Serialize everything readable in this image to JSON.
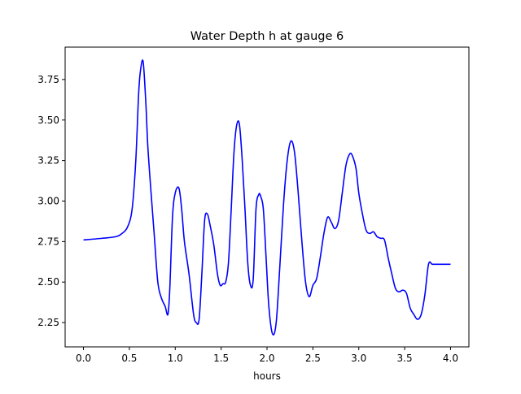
{
  "chart_data": {
    "type": "line",
    "title": "Water Depth h at gauge 6",
    "xlabel": "hours",
    "ylabel": "",
    "xlim": [
      -0.2,
      4.2
    ],
    "ylim": [
      2.1,
      3.95
    ],
    "x_ticks": [
      0.0,
      0.5,
      1.0,
      1.5,
      2.0,
      2.5,
      3.0,
      3.5,
      4.0
    ],
    "x_tick_labels": [
      "0.0",
      "0.5",
      "1.0",
      "1.5",
      "2.0",
      "2.5",
      "3.0",
      "3.5",
      "4.0"
    ],
    "y_ticks": [
      2.25,
      2.5,
      2.75,
      3.0,
      3.25,
      3.5,
      3.75
    ],
    "y_tick_labels": [
      "2.25",
      "2.50",
      "2.75",
      "3.00",
      "3.25",
      "3.50",
      "3.75"
    ],
    "grid": false,
    "legend": "none",
    "series": [
      {
        "color": "#0000ff",
        "x": [
          0.0,
          0.2,
          0.35,
          0.42,
          0.48,
          0.53,
          0.57,
          0.6,
          0.62,
          0.65,
          0.68,
          0.7,
          0.73,
          0.77,
          0.81,
          0.85,
          0.89,
          0.92,
          0.94,
          0.97,
          1.0,
          1.04,
          1.07,
          1.1,
          1.15,
          1.2,
          1.23,
          1.26,
          1.29,
          1.32,
          1.35,
          1.38,
          1.42,
          1.46,
          1.49,
          1.52,
          1.55,
          1.58,
          1.61,
          1.64,
          1.67,
          1.7,
          1.73,
          1.76,
          1.79,
          1.82,
          1.85,
          1.88,
          1.91,
          1.93,
          1.96,
          1.99,
          2.02,
          2.06,
          2.1,
          2.14,
          2.18,
          2.22,
          2.26,
          2.3,
          2.34,
          2.38,
          2.42,
          2.46,
          2.5,
          2.54,
          2.58,
          2.62,
          2.66,
          2.7,
          2.74,
          2.78,
          2.82,
          2.86,
          2.9,
          2.93,
          2.97,
          3.0,
          3.04,
          3.08,
          3.12,
          3.16,
          3.2,
          3.24,
          3.28,
          3.32,
          3.36,
          3.4,
          3.44,
          3.48,
          3.52,
          3.56,
          3.6,
          3.64,
          3.68,
          3.72,
          3.76,
          3.8,
          3.84,
          3.88,
          3.92,
          3.96,
          4.0
        ],
        "y": [
          2.76,
          2.77,
          2.78,
          2.8,
          2.84,
          2.95,
          3.25,
          3.65,
          3.8,
          3.86,
          3.6,
          3.35,
          3.1,
          2.8,
          2.5,
          2.4,
          2.35,
          2.3,
          2.45,
          2.9,
          3.05,
          3.08,
          2.95,
          2.75,
          2.55,
          2.3,
          2.25,
          2.27,
          2.55,
          2.88,
          2.92,
          2.85,
          2.73,
          2.55,
          2.48,
          2.49,
          2.5,
          2.62,
          2.95,
          3.3,
          3.47,
          3.47,
          3.25,
          2.95,
          2.62,
          2.48,
          2.52,
          2.95,
          3.04,
          3.03,
          2.95,
          2.65,
          2.35,
          2.18,
          2.25,
          2.6,
          2.98,
          3.25,
          3.37,
          3.3,
          3.05,
          2.75,
          2.5,
          2.41,
          2.48,
          2.52,
          2.65,
          2.8,
          2.9,
          2.87,
          2.83,
          2.88,
          3.05,
          3.22,
          3.29,
          3.28,
          3.2,
          3.05,
          2.92,
          2.82,
          2.8,
          2.81,
          2.78,
          2.77,
          2.76,
          2.65,
          2.55,
          2.46,
          2.44,
          2.45,
          2.43,
          2.34,
          2.3,
          2.27,
          2.3,
          2.42,
          2.61,
          2.61,
          2.61,
          2.61,
          2.61,
          2.61,
          2.61
        ]
      }
    ]
  }
}
